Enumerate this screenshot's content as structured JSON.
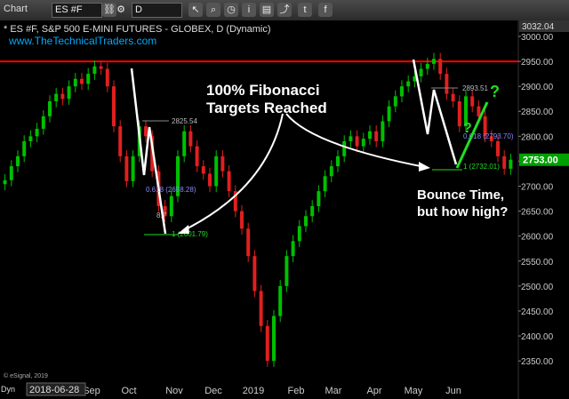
{
  "toolbar": {
    "title": "Chart",
    "symbol": "ES #F",
    "interval": "D",
    "icons": [
      "link-icon",
      "gear-icon",
      "cursor-icon",
      "search-icon",
      "clock-icon",
      "info-icon",
      "chart-tools-icon",
      "share-icon",
      "twitter-icon",
      "facebook-icon"
    ]
  },
  "header": {
    "line1": "* ES #F, S&P 500 E-MINI FUTURES - GLOBEX, D (Dynamic)",
    "line2": "www.TheTechnicalTraders.com"
  },
  "annotations": {
    "fib_title_1": "100% Fibonacci",
    "fib_title_2": "Targets Reached",
    "bounce_1": "Bounce Time,",
    "bounce_2": "but how high?",
    "question_mark": "?"
  },
  "fib_labels": {
    "left_top": "2825.54",
    "left_618": "0.618 (2658.28)",
    "left_1": "1 (2601.79)",
    "left_partial": "8.7",
    "right_top": "2893.51",
    "right_618": "0.618 (2793.70)",
    "right_1": "1 (2732.01)"
  },
  "footer": {
    "copyright": "© eSignal, 2019",
    "dyn": "Dyn",
    "date_box": "2018-06-28"
  },
  "colors": {
    "background": "#000000",
    "up_candle": "#00c000",
    "down_candle": "#e02020",
    "resistance": "#ff0000",
    "price_label_bg": "#00a000",
    "arrow": "#ffffff",
    "projection": "#22dd22"
  },
  "chart_data": {
    "type": "candlestick",
    "title": "* ES #F, S&P 500 E-MINI FUTURES - GLOBEX, D (Dynamic)",
    "x_tick_labels": [
      "Sep",
      "Oct",
      "Nov",
      "Dec",
      "2019",
      "Feb",
      "Mar",
      "Apr",
      "May",
      "Jun"
    ],
    "y_tick_labels": [
      "2350.00",
      "2400.00",
      "2450.00",
      "2500.00",
      "2550.00",
      "2600.00",
      "2650.00",
      "2700.00",
      "2750.00",
      "2800.00",
      "2850.00",
      "2900.00",
      "2950.00",
      "3000.00"
    ],
    "ylim": [
      2320,
      3032
    ],
    "top_label": "3032.04",
    "last_price": "2753.00",
    "resistance_level": 2950,
    "series": [
      {
        "values": [
          2712,
          2740,
          2760,
          2790,
          2800,
          2815,
          2840,
          2870,
          2885,
          2875,
          2900,
          2915,
          2905,
          2925,
          2940,
          2935,
          2900,
          2820,
          2760,
          2710,
          2760,
          2820,
          2800,
          2730,
          2660,
          2640,
          2680,
          2760,
          2810,
          2780,
          2740,
          2725,
          2700,
          2760,
          2730,
          2690,
          2650,
          2615,
          2560,
          2490,
          2420,
          2350,
          2440,
          2500,
          2560,
          2590,
          2620,
          2640,
          2660,
          2690,
          2720,
          2740,
          2760,
          2790,
          2800,
          2780,
          2795,
          2810,
          2790,
          2830,
          2860,
          2880,
          2900,
          2910,
          2920,
          2935,
          2945,
          2955,
          2925,
          2885,
          2870,
          2820,
          2880,
          2860,
          2840,
          2800,
          2790,
          2760,
          2735,
          2753
        ]
      }
    ],
    "fib_levels": [
      {
        "value": 2825.54
      },
      {
        "value": 2658.28
      },
      {
        "value": 2601.79
      },
      {
        "value": 2893.51
      },
      {
        "value": 2793.7
      },
      {
        "value": 2732.01
      }
    ]
  }
}
